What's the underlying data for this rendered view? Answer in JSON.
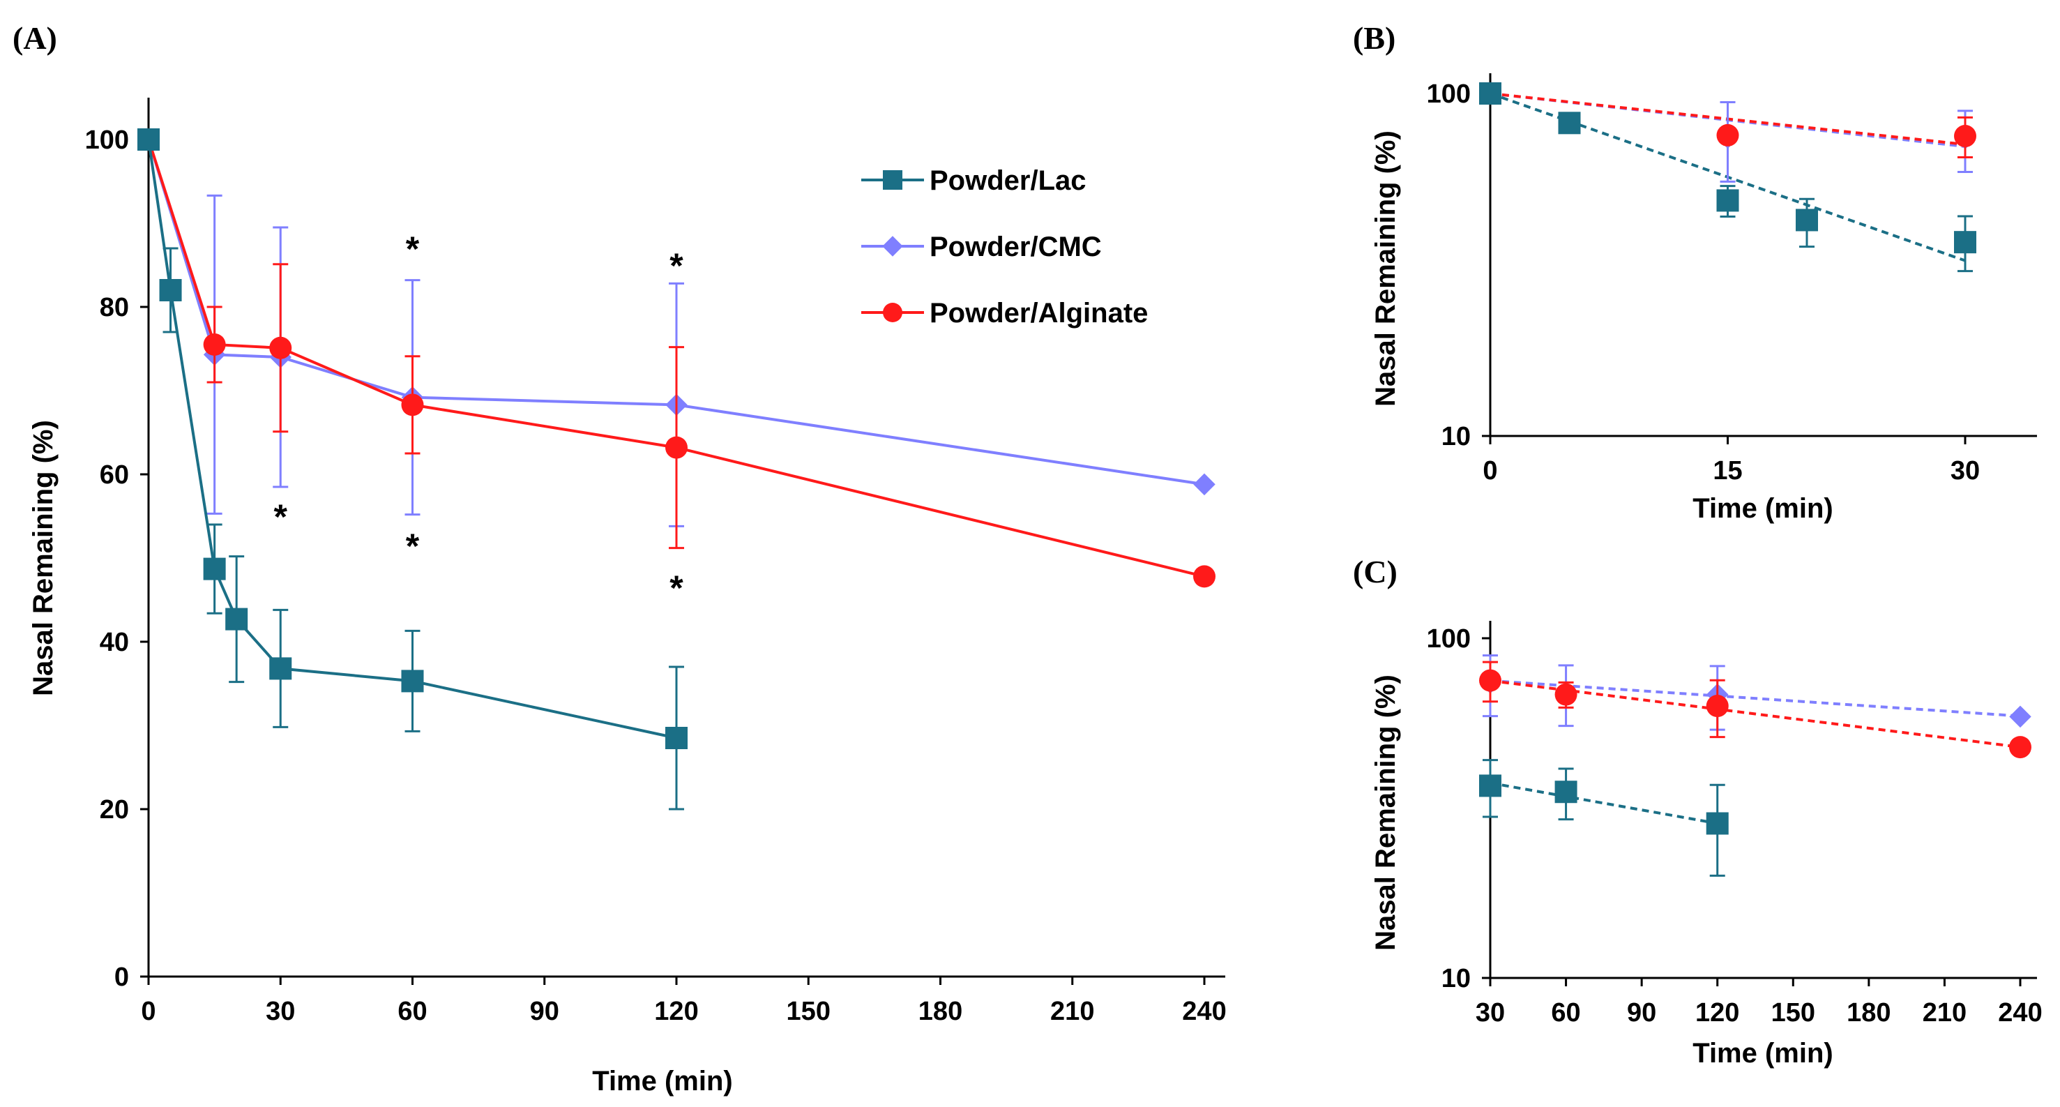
{
  "colors": {
    "Powder/Lac": "#1b6f86",
    "Powder/CMC": "#7f7fff",
    "Powder/Alginate": "#ff1a1a"
  },
  "markers": {
    "Powder/Lac": "square",
    "Powder/CMC": "diamond",
    "Powder/Alginate": "circle"
  },
  "chart_data": [
    {
      "panel": "(A)",
      "type": "line",
      "xlabel": "Time (min)",
      "ylabel": "Nasal Remaining (%)",
      "xlim": [
        0,
        245
      ],
      "ylim": [
        0,
        105
      ],
      "xscale": "linear",
      "yscale": "linear",
      "xticks": [
        0,
        30,
        60,
        90,
        120,
        150,
        180,
        210,
        240
      ],
      "yticks": [
        0,
        20,
        40,
        60,
        80,
        100
      ],
      "line_style": "solid",
      "legend": {
        "placement": "top-right",
        "entries": [
          "Powder/Lac",
          "Powder/CMC",
          "Powder/Alginate"
        ]
      },
      "series": [
        {
          "name": "Powder/Lac",
          "x": [
            0,
            5,
            15,
            20,
            30,
            60,
            120
          ],
          "y": [
            100,
            82,
            48.7,
            42.7,
            36.8,
            35.3,
            28.5
          ],
          "err": [
            0,
            5,
            5.3,
            7.5,
            7,
            6,
            8.5
          ]
        },
        {
          "name": "Powder/CMC",
          "x": [
            0,
            15,
            30,
            60,
            120,
            240
          ],
          "y": [
            100,
            74.3,
            74,
            69.2,
            68.3,
            58.8
          ],
          "err": [
            0,
            19,
            15.5,
            14,
            14.5,
            0
          ]
        },
        {
          "name": "Powder/Alginate",
          "x": [
            0,
            15,
            30,
            60,
            120,
            240
          ],
          "y": [
            100,
            75.5,
            75.1,
            68.3,
            63.2,
            47.8
          ],
          "err": [
            0,
            4.5,
            10,
            5.8,
            12,
            0
          ]
        }
      ],
      "annotations": [
        {
          "text": "*",
          "x": 30,
          "y": 55
        },
        {
          "text": "*",
          "x": 60,
          "y": 87
        },
        {
          "text": "*",
          "x": 60,
          "y": 51.5
        },
        {
          "text": "*",
          "x": 120,
          "y": 85
        },
        {
          "text": "*",
          "x": 120,
          "y": 46.5
        }
      ]
    },
    {
      "panel": "(B)",
      "type": "scatter",
      "xlabel": "Time (min)",
      "ylabel": "Nasal Remaining (%)",
      "xlim": [
        0,
        35
      ],
      "ylim": [
        10,
        105
      ],
      "xscale": "linear",
      "yscale": "log",
      "xticks": [
        0,
        15,
        30
      ],
      "yticks": [
        10,
        100
      ],
      "series": [
        {
          "name": "Powder/Lac",
          "x": [
            0,
            5,
            15,
            20,
            30
          ],
          "y": [
            100,
            82,
            48.7,
            42.7,
            36.8
          ],
          "err_hi": [
            0,
            0,
            5,
            6.5,
            7
          ],
          "err_lo": [
            0,
            0,
            5,
            7,
            6.5
          ]
        },
        {
          "name": "Powder/CMC",
          "x": [
            0,
            15,
            30
          ],
          "y": [
            100,
            74.3,
            74
          ],
          "err_hi": [
            0,
            20,
            15
          ],
          "err_lo": [
            0,
            19,
            15
          ]
        },
        {
          "name": "Powder/Alginate",
          "x": [
            0,
            15,
            30
          ],
          "y": [
            100,
            75.5,
            75.1
          ],
          "err_hi": [
            0,
            0,
            10
          ],
          "err_lo": [
            0,
            0,
            10
          ]
        }
      ],
      "trendlines": [
        {
          "name": "Powder/Lac",
          "style": "dashed",
          "x": [
            0,
            30
          ],
          "y": [
            100,
            32.5
          ]
        },
        {
          "name": "Powder/CMC",
          "style": "dashed",
          "x": [
            0,
            30
          ],
          "y": [
            100,
            70
          ]
        },
        {
          "name": "Powder/Alginate",
          "style": "dashed",
          "x": [
            0,
            30
          ],
          "y": [
            100,
            71
          ]
        }
      ]
    },
    {
      "panel": "(C)",
      "type": "scatter",
      "xlabel": "Time (min)",
      "ylabel": "Nasal Remaining (%)",
      "xlim": [
        30,
        245
      ],
      "ylim": [
        10,
        110
      ],
      "xscale": "linear",
      "yscale": "log",
      "xticks": [
        30,
        60,
        90,
        120,
        150,
        180,
        210,
        240
      ],
      "yticks": [
        10,
        100
      ],
      "series": [
        {
          "name": "Powder/Lac",
          "x": [
            30,
            60,
            120
          ],
          "y": [
            36.8,
            35.3,
            28.5
          ],
          "err_hi": [
            7,
            6,
            8.5
          ],
          "err_lo": [
            7,
            6,
            8.5
          ]
        },
        {
          "name": "Powder/CMC",
          "x": [
            30,
            60,
            120,
            240
          ],
          "y": [
            74,
            69.2,
            68.3,
            58.8
          ],
          "err_hi": [
            15,
            14,
            14.5,
            0
          ],
          "err_lo": [
            15,
            14,
            14.5,
            0
          ]
        },
        {
          "name": "Powder/Alginate",
          "x": [
            30,
            60,
            120,
            240
          ],
          "y": [
            75.1,
            68.3,
            63.2,
            47.8
          ],
          "err_hi": [
            10,
            5.8,
            12,
            0
          ],
          "err_lo": [
            10,
            5.8,
            12,
            0
          ]
        }
      ],
      "trendlines": [
        {
          "name": "Powder/Lac",
          "style": "dashed",
          "x": [
            30,
            120
          ],
          "y": [
            37.5,
            28.5
          ]
        },
        {
          "name": "Powder/CMC",
          "style": "dashed",
          "x": [
            30,
            240
          ],
          "y": [
            75,
            59
          ]
        },
        {
          "name": "Powder/Alginate",
          "style": "dashed",
          "x": [
            30,
            240
          ],
          "y": [
            75,
            47.8
          ]
        }
      ]
    }
  ]
}
